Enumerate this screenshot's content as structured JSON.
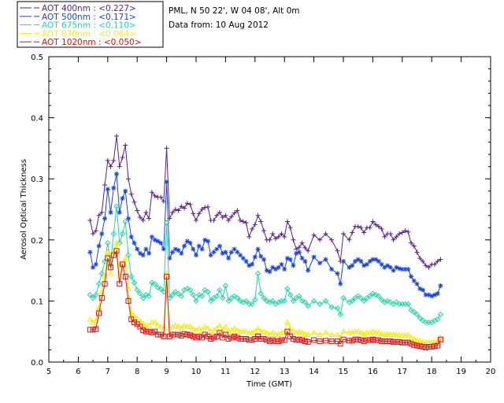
{
  "info": {
    "station": "PML, N 50 22', W 04 08', Alt 0m",
    "date": "Data from: 10 Aug 2012"
  },
  "legend": [
    {
      "label": "AOT  400nm : <0.227>",
      "color": "#5a1f8c"
    },
    {
      "label": "AOT  500nm : <0.171>",
      "color": "#1a44dd"
    },
    {
      "label": "AOT  675nm : <0.110>",
      "color": "#22d6a6"
    },
    {
      "label": "AOT  870nm : <0.064>",
      "color": "#f2ee00"
    },
    {
      "label": "AOT 1020nm : <0.050>",
      "color": "#dd1111"
    }
  ],
  "chart_data": {
    "type": "line",
    "title": "",
    "xlabel": "Time (GMT)",
    "ylabel": "Aerosol Optical Thickness",
    "xlim": [
      5,
      20
    ],
    "ylim": [
      0,
      0.5
    ],
    "xticks": [
      5,
      6,
      7,
      8,
      9,
      10,
      11,
      12,
      13,
      14,
      15,
      16,
      17,
      18,
      19,
      20
    ],
    "yticks": [
      0.0,
      0.1,
      0.2,
      0.3,
      0.4,
      0.5
    ],
    "ytick_labels": [
      "0.0",
      "0.1",
      "0.2",
      "0.3",
      "0.4",
      "0.5"
    ],
    "grid": false,
    "legend_position": "top-left outside",
    "x": [
      6.4,
      6.5,
      6.6,
      6.7,
      6.8,
      6.9,
      7.0,
      7.1,
      7.2,
      7.3,
      7.4,
      7.5,
      7.6,
      7.7,
      7.8,
      7.9,
      8.0,
      8.1,
      8.2,
      8.3,
      8.4,
      8.5,
      8.6,
      8.7,
      8.8,
      8.9,
      9.0,
      9.1,
      9.2,
      9.3,
      9.4,
      9.5,
      9.6,
      9.7,
      9.8,
      9.9,
      10.0,
      10.1,
      10.2,
      10.3,
      10.4,
      10.5,
      10.6,
      10.7,
      10.8,
      10.9,
      11.0,
      11.1,
      11.2,
      11.3,
      11.4,
      11.5,
      11.6,
      11.7,
      11.8,
      11.9,
      12.0,
      12.1,
      12.2,
      12.3,
      12.4,
      12.5,
      12.6,
      12.7,
      12.8,
      12.9,
      13.0,
      13.1,
      13.2,
      13.3,
      13.4,
      13.5,
      13.6,
      13.7,
      13.8,
      14.0,
      14.2,
      14.4,
      14.6,
      14.8,
      14.9,
      15.0,
      15.2,
      15.3,
      15.4,
      15.5,
      15.6,
      15.7,
      15.8,
      15.9,
      16.0,
      16.1,
      16.2,
      16.3,
      16.4,
      16.5,
      16.6,
      16.7,
      16.8,
      16.9,
      17.0,
      17.1,
      17.2,
      17.3,
      17.4,
      17.5,
      17.6,
      17.7,
      17.8,
      17.9,
      18.0,
      18.1,
      18.2,
      18.3
    ],
    "series": [
      {
        "name": "AOT  400nm : <0.227>",
        "color": "#5a1f8c",
        "marker": "plus",
        "values": [
          0.232,
          0.21,
          0.215,
          0.24,
          0.245,
          0.29,
          0.33,
          0.32,
          0.33,
          0.37,
          0.32,
          0.335,
          0.355,
          0.3,
          0.275,
          0.262,
          0.248,
          0.237,
          0.232,
          0.245,
          0.235,
          0.278,
          0.272,
          0.27,
          0.27,
          0.263,
          0.35,
          0.235,
          0.245,
          0.25,
          0.248,
          0.255,
          0.252,
          0.26,
          0.258,
          0.243,
          0.232,
          0.243,
          0.25,
          0.253,
          0.254,
          0.232,
          0.232,
          0.24,
          0.245,
          0.237,
          0.24,
          0.232,
          0.238,
          0.244,
          0.248,
          0.232,
          0.23,
          0.228,
          0.205,
          0.218,
          0.225,
          0.24,
          0.23,
          0.215,
          0.2,
          0.2,
          0.21,
          0.202,
          0.205,
          0.21,
          0.205,
          0.23,
          0.22,
          0.2,
          0.185,
          0.188,
          0.195,
          0.187,
          0.182,
          0.208,
          0.2,
          0.21,
          0.2,
          0.182,
          0.165,
          0.21,
          0.2,
          0.212,
          0.222,
          0.222,
          0.22,
          0.212,
          0.22,
          0.22,
          0.23,
          0.225,
          0.222,
          0.218,
          0.205,
          0.21,
          0.21,
          0.2,
          0.205,
          0.21,
          0.212,
          0.215,
          0.213,
          0.195,
          0.19,
          0.18,
          0.17,
          0.165,
          0.158,
          0.155,
          0.16,
          0.16,
          0.165,
          0.168
        ]
      },
      {
        "name": "AOT  500nm : <0.171>",
        "color": "#1a44dd",
        "marker": "star",
        "values": [
          0.18,
          0.155,
          0.16,
          0.19,
          0.21,
          0.235,
          0.283,
          0.245,
          0.285,
          0.308,
          0.245,
          0.268,
          0.28,
          0.235,
          0.205,
          0.195,
          0.185,
          0.178,
          0.175,
          0.185,
          0.178,
          0.205,
          0.2,
          0.198,
          0.195,
          0.185,
          0.295,
          0.17,
          0.18,
          0.185,
          0.183,
          0.178,
          0.19,
          0.198,
          0.195,
          0.185,
          0.175,
          0.19,
          0.185,
          0.2,
          0.198,
          0.175,
          0.18,
          0.185,
          0.19,
          0.178,
          0.18,
          0.17,
          0.18,
          0.185,
          0.18,
          0.175,
          0.17,
          0.165,
          0.158,
          0.16,
          0.172,
          0.185,
          0.173,
          0.168,
          0.15,
          0.148,
          0.155,
          0.152,
          0.155,
          0.16,
          0.152,
          0.17,
          0.168,
          0.158,
          0.178,
          0.18,
          0.17,
          0.165,
          0.15,
          0.172,
          0.162,
          0.168,
          0.152,
          0.145,
          0.128,
          0.165,
          0.155,
          0.158,
          0.165,
          0.168,
          0.165,
          0.158,
          0.16,
          0.165,
          0.168,
          0.168,
          0.165,
          0.16,
          0.155,
          0.158,
          0.155,
          0.15,
          0.155,
          0.153,
          0.152,
          0.152,
          0.152,
          0.14,
          0.133,
          0.128,
          0.12,
          0.118,
          0.11,
          0.11,
          0.108,
          0.11,
          0.112,
          0.125
        ]
      },
      {
        "name": "AOT  675nm : <0.110>",
        "color": "#22d6a6",
        "marker": "diamond",
        "values": [
          0.11,
          0.105,
          0.11,
          0.128,
          0.145,
          0.165,
          0.195,
          0.16,
          0.21,
          0.255,
          0.195,
          0.21,
          0.23,
          0.175,
          0.14,
          0.13,
          0.118,
          0.112,
          0.105,
          0.11,
          0.108,
          0.13,
          0.128,
          0.122,
          0.12,
          0.115,
          0.228,
          0.105,
          0.11,
          0.115,
          0.112,
          0.108,
          0.118,
          0.12,
          0.118,
          0.11,
          0.1,
          0.11,
          0.108,
          0.118,
          0.115,
          0.1,
          0.105,
          0.108,
          0.118,
          0.105,
          0.125,
          0.1,
          0.105,
          0.108,
          0.105,
          0.1,
          0.098,
          0.1,
          0.095,
          0.095,
          0.102,
          0.145,
          0.112,
          0.105,
          0.1,
          0.098,
          0.1,
          0.095,
          0.098,
          0.1,
          0.1,
          0.12,
          0.11,
          0.1,
          0.105,
          0.108,
          0.1,
          0.098,
          0.092,
          0.1,
          0.095,
          0.1,
          0.09,
          0.088,
          0.078,
          0.105,
          0.098,
          0.1,
          0.105,
          0.108,
          0.105,
          0.1,
          0.105,
          0.108,
          0.112,
          0.11,
          0.108,
          0.102,
          0.098,
          0.1,
          0.098,
          0.095,
          0.098,
          0.095,
          0.095,
          0.095,
          0.095,
          0.085,
          0.082,
          0.078,
          0.072,
          0.068,
          0.065,
          0.065,
          0.065,
          0.068,
          0.07,
          0.078
        ]
      },
      {
        "name": "AOT  870nm : <0.064>",
        "color": "#f2ee00",
        "marker": "triangle",
        "values": [
          0.07,
          0.065,
          0.068,
          0.09,
          0.115,
          0.14,
          0.18,
          0.145,
          0.18,
          0.195,
          0.14,
          0.16,
          0.17,
          0.12,
          0.08,
          0.075,
          0.07,
          0.068,
          0.062,
          0.06,
          0.06,
          0.065,
          0.065,
          0.06,
          0.058,
          0.055,
          0.145,
          0.055,
          0.058,
          0.06,
          0.058,
          0.055,
          0.06,
          0.058,
          0.058,
          0.055,
          0.052,
          0.055,
          0.052,
          0.058,
          0.055,
          0.05,
          0.052,
          0.055,
          0.06,
          0.052,
          0.058,
          0.05,
          0.052,
          0.055,
          0.052,
          0.05,
          0.05,
          0.05,
          0.048,
          0.048,
          0.05,
          0.055,
          0.05,
          0.05,
          0.048,
          0.045,
          0.048,
          0.045,
          0.045,
          0.048,
          0.048,
          0.065,
          0.055,
          0.05,
          0.048,
          0.05,
          0.048,
          0.046,
          0.045,
          0.048,
          0.045,
          0.048,
          0.045,
          0.045,
          0.04,
          0.05,
          0.048,
          0.048,
          0.05,
          0.05,
          0.048,
          0.046,
          0.048,
          0.048,
          0.05,
          0.048,
          0.048,
          0.046,
          0.045,
          0.046,
          0.045,
          0.045,
          0.045,
          0.044,
          0.044,
          0.044,
          0.044,
          0.04,
          0.038,
          0.036,
          0.034,
          0.033,
          0.032,
          0.032,
          0.032,
          0.033,
          0.034,
          0.04
        ]
      },
      {
        "name": "AOT 1020nm : <0.050>",
        "color": "#dd1111",
        "marker": "square",
        "values": [
          0.053,
          0.053,
          0.054,
          0.08,
          0.105,
          0.128,
          0.17,
          0.155,
          0.175,
          0.182,
          0.128,
          0.16,
          0.14,
          0.1,
          0.07,
          0.065,
          0.062,
          0.058,
          0.052,
          0.05,
          0.05,
          0.048,
          0.05,
          0.045,
          0.045,
          0.042,
          0.14,
          0.042,
          0.045,
          0.045,
          0.045,
          0.043,
          0.046,
          0.045,
          0.044,
          0.042,
          0.04,
          0.042,
          0.04,
          0.045,
          0.042,
          0.038,
          0.04,
          0.042,
          0.048,
          0.04,
          0.045,
          0.038,
          0.04,
          0.042,
          0.04,
          0.038,
          0.038,
          0.038,
          0.036,
          0.036,
          0.038,
          0.042,
          0.038,
          0.038,
          0.036,
          0.034,
          0.036,
          0.034,
          0.034,
          0.036,
          0.036,
          0.05,
          0.042,
          0.038,
          0.036,
          0.037,
          0.036,
          0.034,
          0.033,
          0.036,
          0.034,
          0.035,
          0.034,
          0.034,
          0.03,
          0.037,
          0.035,
          0.035,
          0.037,
          0.037,
          0.036,
          0.034,
          0.036,
          0.036,
          0.037,
          0.036,
          0.036,
          0.034,
          0.034,
          0.034,
          0.034,
          0.033,
          0.033,
          0.033,
          0.032,
          0.032,
          0.032,
          0.03,
          0.028,
          0.027,
          0.026,
          0.025,
          0.024,
          0.025,
          0.025,
          0.026,
          0.027,
          0.037
        ]
      }
    ]
  }
}
